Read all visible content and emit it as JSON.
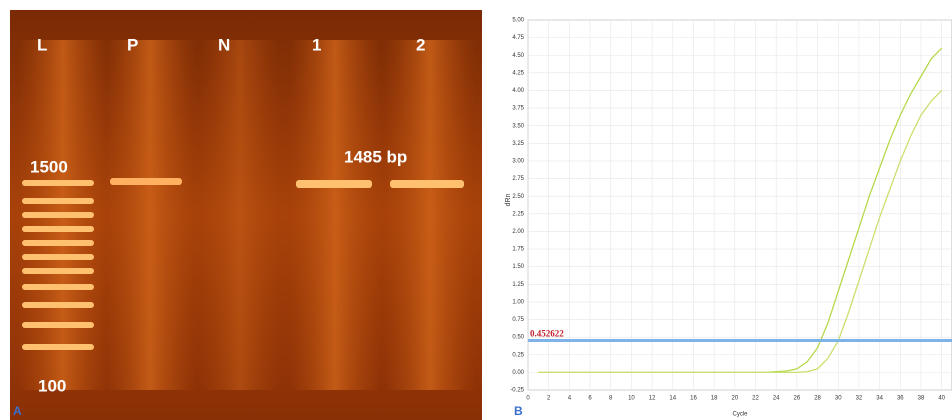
{
  "gel": {
    "panel_label": "A",
    "lanes": [
      "L",
      "P",
      "N",
      "1",
      "2"
    ],
    "ladder_labels": [
      "1500",
      "100"
    ],
    "band_label": "1485 bp"
  },
  "chart_data": {
    "type": "line",
    "panel_label": "B",
    "ylabel": "dRn",
    "xlabel": "Cycle",
    "x": [
      1,
      2,
      3,
      4,
      5,
      6,
      7,
      8,
      9,
      10,
      11,
      12,
      13,
      14,
      15,
      16,
      17,
      18,
      19,
      20,
      21,
      22,
      23,
      24,
      25,
      26,
      27,
      28,
      29,
      30,
      31,
      32,
      33,
      34,
      35,
      36,
      37,
      38,
      39,
      40
    ],
    "series": [
      {
        "color": "#b5d94a",
        "values": [
          0,
          0,
          0,
          0,
          0,
          0,
          0,
          0,
          0,
          0,
          0,
          0,
          0,
          0,
          0,
          0,
          0,
          0,
          0,
          0,
          0,
          0,
          0,
          0.01,
          0.02,
          0.05,
          0.15,
          0.35,
          0.7,
          1.15,
          1.6,
          2.05,
          2.5,
          2.9,
          3.3,
          3.65,
          3.95,
          4.2,
          4.45,
          4.6
        ]
      },
      {
        "color": "#c9e070",
        "values": [
          0,
          0,
          0,
          0,
          0,
          0,
          0,
          0,
          0,
          0,
          0,
          0,
          0,
          0,
          0,
          0,
          0,
          0,
          0,
          0,
          0,
          0,
          0,
          0,
          0,
          0,
          0.01,
          0.05,
          0.2,
          0.45,
          0.85,
          1.3,
          1.75,
          2.2,
          2.6,
          3.0,
          3.35,
          3.65,
          3.85,
          4.0
        ]
      }
    ],
    "threshold": 0.452622,
    "threshold_color": "#7eb3e8",
    "xlim": [
      0,
      41
    ],
    "ylim": [
      -0.25,
      5.0
    ],
    "xticks": [
      0,
      2,
      4,
      6,
      8,
      10,
      12,
      14,
      16,
      18,
      20,
      22,
      24,
      26,
      28,
      30,
      32,
      34,
      36,
      38,
      40
    ],
    "yticks": [
      {
        "value": -0.25,
        "label": "-0.25"
      },
      {
        "value": 0,
        "label": "0.00"
      },
      {
        "value": 0.25,
        "label": "0.25"
      },
      {
        "value": 0.5,
        "label": "0.50"
      },
      {
        "value": 0.75,
        "label": "0.75"
      },
      {
        "value": 1,
        "label": "1.00"
      },
      {
        "value": 1.25,
        "label": "1.25"
      },
      {
        "value": 1.5,
        "label": "1.50"
      },
      {
        "value": 1.75,
        "label": "1.75"
      },
      {
        "value": 2,
        "label": "2.00"
      },
      {
        "value": 2.25,
        "label": "2.25"
      },
      {
        "value": 2.5,
        "label": "2.50"
      },
      {
        "value": 2.75,
        "label": "2.75"
      },
      {
        "value": 3,
        "label": "3.00"
      },
      {
        "value": 3.25,
        "label": "3.25"
      },
      {
        "value": 3.5,
        "label": "3.50"
      },
      {
        "value": 3.75,
        "label": "3.75"
      },
      {
        "value": 4,
        "label": "4.00"
      },
      {
        "value": 4.25,
        "label": "4.25"
      },
      {
        "value": 4.5,
        "label": "4.50"
      },
      {
        "value": 4.75,
        "label": "4.75"
      },
      {
        "value": 5,
        "label": "5.00"
      }
    ],
    "grid": true
  }
}
